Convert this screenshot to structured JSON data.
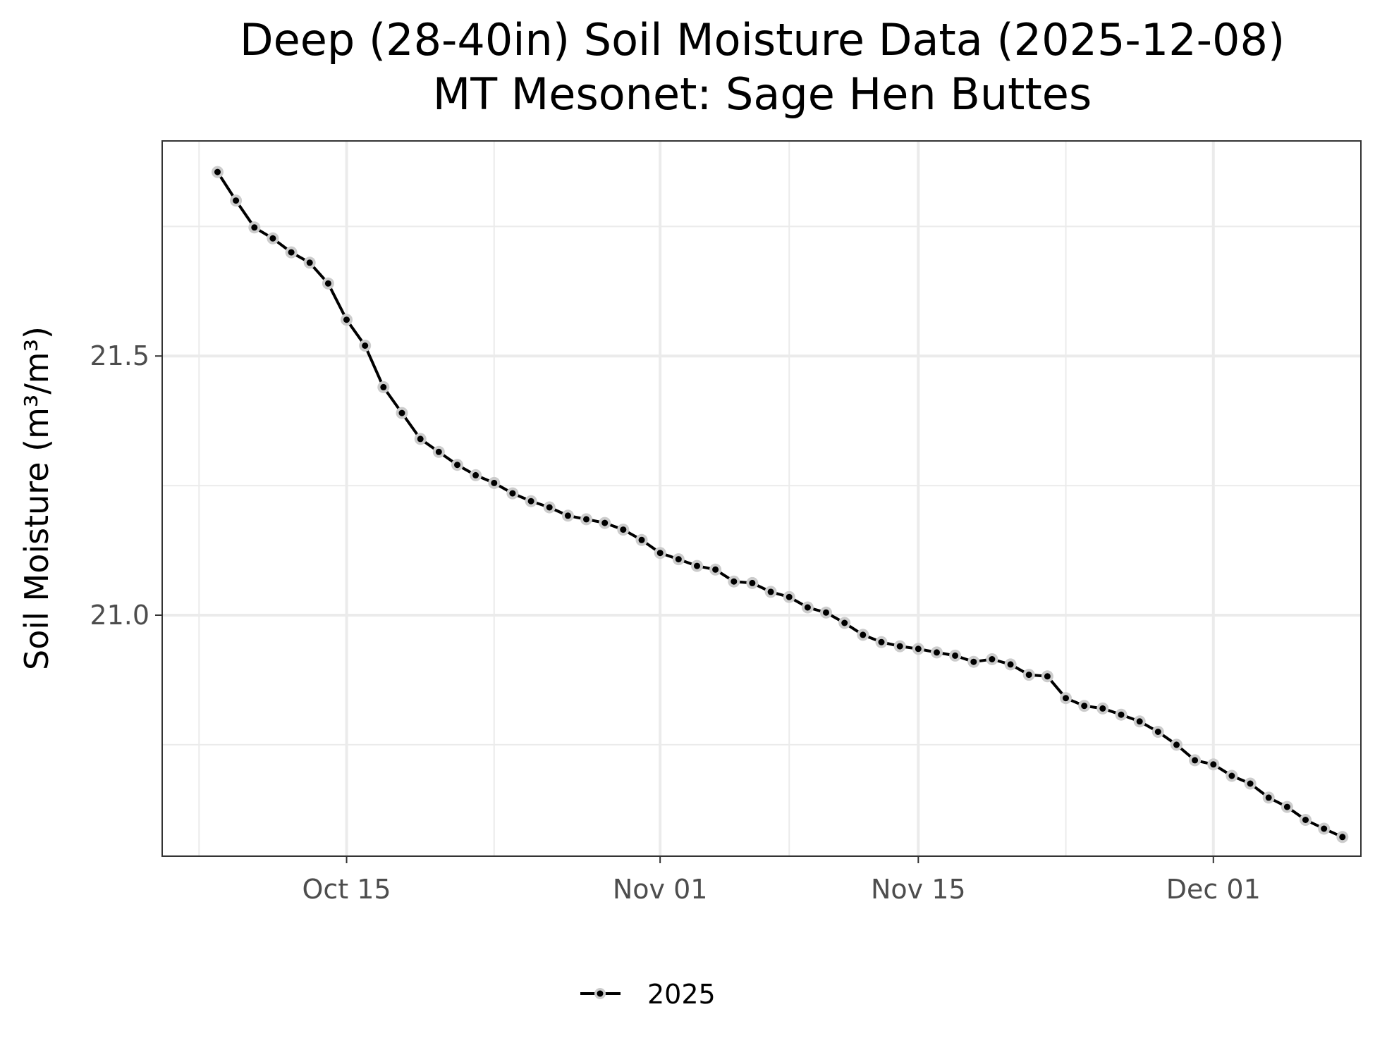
{
  "chart_data": {
    "type": "line",
    "title": "Deep (28-40in) Soil Moisture Data (2025-12-08)",
    "subtitle": "MT Mesonet: Sage Hen Buttes",
    "ylabel": "Soil Moisture (m³/m³)",
    "xlabel": "",
    "xlim": [
      "2025-10-05",
      "2025-12-09"
    ],
    "ylim": [
      20.535,
      21.915
    ],
    "x_ticks": [
      {
        "date": "2025-10-15",
        "label": "Oct 15"
      },
      {
        "date": "2025-11-01",
        "label": "Nov 01"
      },
      {
        "date": "2025-11-15",
        "label": "Nov 15"
      },
      {
        "date": "2025-12-01",
        "label": "Dec 01"
      }
    ],
    "x_minor_ticks": [
      "2025-10-07",
      "2025-10-23",
      "2025-11-08",
      "2025-11-23",
      "2025-12-09"
    ],
    "y_ticks": [
      {
        "value": 21.0,
        "label": "21.0"
      },
      {
        "value": 21.5,
        "label": "21.5"
      }
    ],
    "y_minor_ticks": [
      20.75,
      21.25,
      21.75
    ],
    "grid": true,
    "legend_position": "bottom",
    "series": [
      {
        "name": "2025",
        "color": "#000000",
        "marker_halo_color": "#cccccc",
        "points": [
          [
            "2025-10-08",
            21.855
          ],
          [
            "2025-10-09",
            21.8
          ],
          [
            "2025-10-10",
            21.748
          ],
          [
            "2025-10-11",
            21.727
          ],
          [
            "2025-10-12",
            21.7
          ],
          [
            "2025-10-13",
            21.68
          ],
          [
            "2025-10-14",
            21.64
          ],
          [
            "2025-10-15",
            21.57
          ],
          [
            "2025-10-16",
            21.52
          ],
          [
            "2025-10-17",
            21.44
          ],
          [
            "2025-10-18",
            21.39
          ],
          [
            "2025-10-19",
            21.34
          ],
          [
            "2025-10-20",
            21.315
          ],
          [
            "2025-10-21",
            21.29
          ],
          [
            "2025-10-22",
            21.27
          ],
          [
            "2025-10-23",
            21.255
          ],
          [
            "2025-10-24",
            21.235
          ],
          [
            "2025-10-25",
            21.22
          ],
          [
            "2025-10-26",
            21.208
          ],
          [
            "2025-10-27",
            21.192
          ],
          [
            "2025-10-28",
            21.185
          ],
          [
            "2025-10-29",
            21.178
          ],
          [
            "2025-10-30",
            21.165
          ],
          [
            "2025-10-31",
            21.145
          ],
          [
            "2025-11-01",
            21.12
          ],
          [
            "2025-11-02",
            21.108
          ],
          [
            "2025-11-03",
            21.095
          ],
          [
            "2025-11-04",
            21.088
          ],
          [
            "2025-11-05",
            21.065
          ],
          [
            "2025-11-06",
            21.062
          ],
          [
            "2025-11-07",
            21.045
          ],
          [
            "2025-11-08",
            21.035
          ],
          [
            "2025-11-09",
            21.015
          ],
          [
            "2025-11-10",
            21.005
          ],
          [
            "2025-11-11",
            20.985
          ],
          [
            "2025-11-12",
            20.962
          ],
          [
            "2025-11-13",
            20.948
          ],
          [
            "2025-11-14",
            20.94
          ],
          [
            "2025-11-15",
            20.935
          ],
          [
            "2025-11-16",
            20.928
          ],
          [
            "2025-11-17",
            20.922
          ],
          [
            "2025-11-18",
            20.91
          ],
          [
            "2025-11-19",
            20.915
          ],
          [
            "2025-11-20",
            20.905
          ],
          [
            "2025-11-21",
            20.885
          ],
          [
            "2025-11-22",
            20.882
          ],
          [
            "2025-11-23",
            20.84
          ],
          [
            "2025-11-24",
            20.825
          ],
          [
            "2025-11-25",
            20.82
          ],
          [
            "2025-11-26",
            20.808
          ],
          [
            "2025-11-27",
            20.795
          ],
          [
            "2025-11-28",
            20.775
          ],
          [
            "2025-11-29",
            20.75
          ],
          [
            "2025-11-30",
            20.72
          ],
          [
            "2025-12-01",
            20.712
          ],
          [
            "2025-12-02",
            20.69
          ],
          [
            "2025-12-03",
            20.675
          ],
          [
            "2025-12-04",
            20.648
          ],
          [
            "2025-12-05",
            20.63
          ],
          [
            "2025-12-06",
            20.605
          ],
          [
            "2025-12-07",
            20.588
          ],
          [
            "2025-12-08",
            20.572
          ]
        ]
      }
    ]
  }
}
